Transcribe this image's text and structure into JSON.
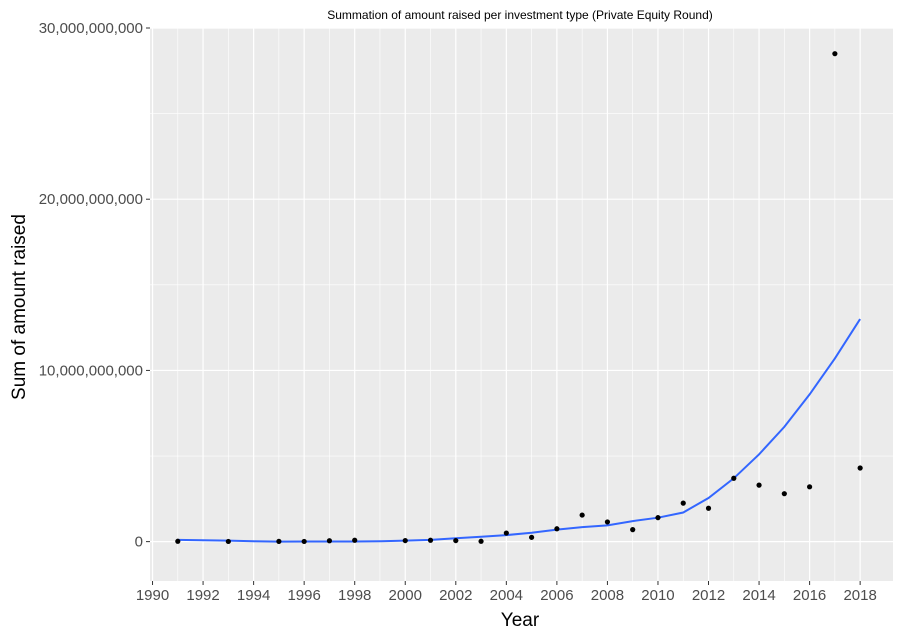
{
  "chart_data": {
    "type": "scatter",
    "title": "Summation of amount raised per investment type (Private Equity Round)",
    "xlabel": "Year",
    "ylabel": "Sum of amount raised",
    "xlim": [
      1989.9,
      2019.3
    ],
    "ylim": [
      -2300000000,
      30000000000
    ],
    "x_ticks": [
      1990,
      1992,
      1994,
      1996,
      1998,
      2000,
      2002,
      2004,
      2006,
      2008,
      2010,
      2012,
      2014,
      2016,
      2018
    ],
    "x_tick_labels": [
      "1990",
      "1992",
      "1994",
      "1996",
      "1998",
      "2000",
      "2002",
      "2004",
      "2006",
      "2008",
      "2010",
      "2012",
      "2014",
      "2016",
      "2018"
    ],
    "y_ticks": [
      0,
      10000000000,
      20000000000,
      30000000000
    ],
    "y_tick_labels": [
      "0",
      "10,000,000,000",
      "20,000,000,000",
      "30,000,000,000"
    ],
    "grid": true,
    "points": [
      {
        "x": 1991,
        "y": 20000000
      },
      {
        "x": 1993,
        "y": 10000000
      },
      {
        "x": 1995,
        "y": 15000000
      },
      {
        "x": 1996,
        "y": 10000000
      },
      {
        "x": 1997,
        "y": 50000000
      },
      {
        "x": 1998,
        "y": 80000000
      },
      {
        "x": 2000,
        "y": 60000000
      },
      {
        "x": 2001,
        "y": 80000000
      },
      {
        "x": 2002,
        "y": 60000000
      },
      {
        "x": 2003,
        "y": 20000000
      },
      {
        "x": 2004,
        "y": 500000000
      },
      {
        "x": 2005,
        "y": 250000000
      },
      {
        "x": 2006,
        "y": 750000000
      },
      {
        "x": 2007,
        "y": 1550000000
      },
      {
        "x": 2008,
        "y": 1150000000
      },
      {
        "x": 2009,
        "y": 700000000
      },
      {
        "x": 2010,
        "y": 1400000000
      },
      {
        "x": 2011,
        "y": 2250000000
      },
      {
        "x": 2012,
        "y": 1950000000
      },
      {
        "x": 2013,
        "y": 3700000000
      },
      {
        "x": 2014,
        "y": 3300000000
      },
      {
        "x": 2015,
        "y": 2800000000
      },
      {
        "x": 2016,
        "y": 3200000000
      },
      {
        "x": 2017,
        "y": 28500000000
      },
      {
        "x": 2018,
        "y": 4300000000
      }
    ],
    "trend": {
      "x": [
        1991,
        1992,
        1993,
        1994,
        1995,
        1996,
        1997,
        1998,
        1999,
        2000,
        2001,
        2002,
        2003,
        2004,
        2005,
        2006,
        2007,
        2008,
        2009,
        2010,
        2011,
        2012,
        2013,
        2014,
        2015,
        2016,
        2017,
        2018
      ],
      "y": [
        100000000,
        80000000,
        60000000,
        20000000,
        0,
        10000000,
        10000000,
        10000000,
        20000000,
        60000000,
        100000000,
        200000000,
        280000000,
        380000000,
        520000000,
        700000000,
        850000000,
        950000000,
        1200000000,
        1400000000,
        1700000000,
        2550000000,
        3700000000,
        5100000000,
        6700000000,
        8600000000,
        10700000000,
        13000000000
      ]
    },
    "colors": {
      "panel": "#ebebeb",
      "grid": "#ffffff",
      "point": "#000000",
      "trend": "#3366ff"
    }
  }
}
